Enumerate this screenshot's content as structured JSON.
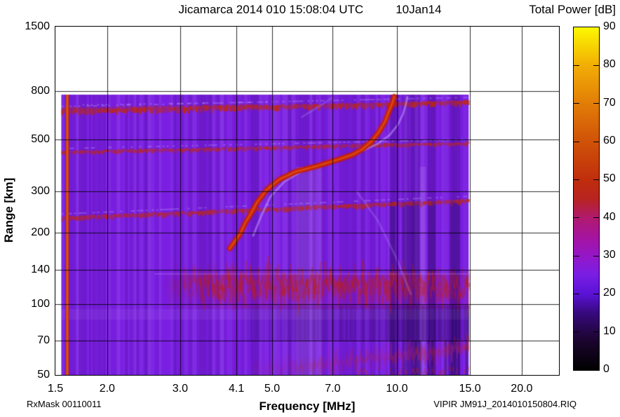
{
  "header": {
    "title": "Jicamarca 2014 010 15:08:04 UTC",
    "date": "10Jan14"
  },
  "footer": {
    "rx_mask": "RxMask 00110011",
    "file_id": "VIPIR  JM91J_2014010150804.RIQ"
  },
  "chart_data": {
    "type": "heatmap",
    "title": "Jicamarca 2014 010 15:08:04 UTC",
    "date_annotation": "10Jan14",
    "xlabel": "Frequency [MHz]",
    "ylabel": "Range [km]",
    "x_scale": "log",
    "y_scale": "log",
    "x_range_mhz": [
      1.5,
      24.6
    ],
    "y_range_km": [
      50,
      1500
    ],
    "x_ticks": [
      {
        "value": 1.5,
        "label": "1.5"
      },
      {
        "value": 2.0,
        "label": "2.0"
      },
      {
        "value": 3.0,
        "label": "3.0"
      },
      {
        "value": 4.1,
        "label": "4.1"
      },
      {
        "value": 5.0,
        "label": "5.0"
      },
      {
        "value": 7.0,
        "label": "7.0"
      },
      {
        "value": 10.0,
        "label": "10.0"
      },
      {
        "value": 15.0,
        "label": "15.0"
      },
      {
        "value": 20.0,
        "label": "20.0"
      }
    ],
    "y_ticks": [
      {
        "value": 1500,
        "label": "1500"
      },
      {
        "value": 800,
        "label": "800"
      },
      {
        "value": 500,
        "label": "500"
      },
      {
        "value": 300,
        "label": "300"
      },
      {
        "value": 200,
        "label": "200"
      },
      {
        "value": 140,
        "label": "140"
      },
      {
        "value": 100,
        "label": "100"
      },
      {
        "value": 70,
        "label": "70"
      },
      {
        "value": 50,
        "label": "50"
      }
    ],
    "grid": true,
    "colorbar": {
      "label": "Total Power [dB]",
      "min_db": 0,
      "max_db": 90,
      "tick_labels": [
        "0",
        "10",
        "20",
        "30",
        "40",
        "50",
        "60",
        "70",
        "80",
        "90"
      ],
      "dash_values": [
        10,
        20,
        30,
        40,
        50,
        60,
        70,
        80
      ],
      "palette": [
        {
          "db": 0,
          "color": "#000000"
        },
        {
          "db": 8,
          "color": "#1c0530"
        },
        {
          "db": 15,
          "color": "#38097e"
        },
        {
          "db": 20,
          "color": "#5a12d6"
        },
        {
          "db": 25,
          "color": "#7a1ee4"
        },
        {
          "db": 30,
          "color": "#9417c6"
        },
        {
          "db": 35,
          "color": "#a6149e"
        },
        {
          "db": 40,
          "color": "#b01a6e"
        },
        {
          "db": 45,
          "color": "#b82420"
        },
        {
          "db": 50,
          "color": "#c02e0c"
        },
        {
          "db": 60,
          "color": "#d05208"
        },
        {
          "db": 70,
          "color": "#e27d07"
        },
        {
          "db": 80,
          "color": "#f2ae05"
        },
        {
          "db": 90,
          "color": "#fcf800"
        }
      ]
    },
    "data_extent": {
      "f_min_mhz": 1.55,
      "f_max_mhz": 14.9,
      "r_min_km": 50,
      "r_max_km": 772
    },
    "background_db": 25,
    "features": {
      "calibration_stripe": {
        "f_mhz": 1.6,
        "db": 55
      },
      "horizontal_bands": [
        {
          "name": "echo-band-650km",
          "r_at_fmin_km": 646,
          "r_at_fmax_km": 707,
          "thickness_px": 7,
          "amp": 1.0,
          "f_start_mhz": 1.55,
          "f_end_mhz": 14.9
        },
        {
          "name": "echo-band-650km-upper-strand",
          "r_at_fmin_km": 668,
          "r_at_fmax_km": 712,
          "thickness_px": 4,
          "amp": 0.55,
          "f_start_mhz": 1.55,
          "f_end_mhz": 4.85
        },
        {
          "name": "echo-band-440km",
          "r_at_fmin_km": 435,
          "r_at_fmax_km": 475,
          "thickness_px": 5,
          "amp": 0.85,
          "f_start_mhz": 1.55,
          "f_end_mhz": 14.9
        },
        {
          "name": "echo-band-240km",
          "r_at_fmin_km": 228,
          "r_at_fmax_km": 271,
          "thickness_px": 6,
          "amp": 0.9,
          "f_start_mhz": 1.55,
          "f_end_mhz": 14.9
        }
      ],
      "f_trace_o_mode": {
        "db": 52,
        "foF2_mhz": 9.9,
        "points": [
          [
            3.95,
            172
          ],
          [
            4.05,
            183
          ],
          [
            4.19,
            199
          ],
          [
            4.3,
            220
          ],
          [
            4.45,
            243
          ],
          [
            4.6,
            270
          ],
          [
            4.85,
            305
          ],
          [
            5.2,
            337
          ],
          [
            5.7,
            364
          ],
          [
            6.4,
            384
          ],
          [
            7.2,
            409
          ],
          [
            7.8,
            429
          ],
          [
            8.25,
            453
          ],
          [
            8.7,
            491
          ],
          [
            9.05,
            537
          ],
          [
            9.35,
            591
          ],
          [
            9.55,
            651
          ],
          [
            9.75,
            712
          ],
          [
            9.85,
            757
          ]
        ]
      },
      "f_trace_x_mode": {
        "db": 30,
        "points": [
          [
            4.5,
            195
          ],
          [
            4.7,
            235
          ],
          [
            4.95,
            285
          ],
          [
            5.35,
            330
          ],
          [
            5.95,
            368
          ],
          [
            6.6,
            392
          ],
          [
            7.5,
            420
          ],
          [
            8.3,
            448
          ],
          [
            9.0,
            478
          ],
          [
            9.6,
            520
          ],
          [
            10.05,
            575
          ],
          [
            10.35,
            640
          ],
          [
            10.5,
            700
          ],
          [
            10.6,
            755
          ]
        ]
      },
      "faint_echoes": [
        {
          "points": [
            [
              8.0,
              300
            ],
            [
              9.0,
              225
            ],
            [
              10.0,
              155
            ],
            [
              10.8,
              110
            ]
          ]
        },
        {
          "points": [
            [
              5.9,
              620
            ],
            [
              6.5,
              690
            ],
            [
              7.0,
              750
            ]
          ]
        }
      ],
      "e_region_fuzz": {
        "r_center_km": 112,
        "r_top_km": 135,
        "r_bottom_km": 97,
        "f_start_mhz": 2.7,
        "f_full_mhz": 3.6,
        "f_end_mhz": 14.9,
        "db_peak": 48
      },
      "bottom_fuzz": {
        "r_top_km": 68,
        "r_bottom_km": 50,
        "f_start_mhz": 4.5,
        "db": 38
      },
      "absorption_dark_zone": {
        "r_top_km": 100,
        "r_bottom_km": 70,
        "f_start_mhz": 4.2
      },
      "dark_columns_mhz": [
        [
          9.6,
          9.9
        ],
        [
          10.3,
          11.3
        ],
        [
          11.9,
          12.4
        ],
        [
          13.4,
          14.2
        ]
      ],
      "bright_columns_mhz": [
        [
          11.35,
          11.75
        ],
        [
          5.7,
          6.6
        ]
      ]
    }
  },
  "colors": {
    "plot_border": "#000000",
    "grid": "#000000",
    "page_background": "#ffffff",
    "text": "#000000"
  }
}
